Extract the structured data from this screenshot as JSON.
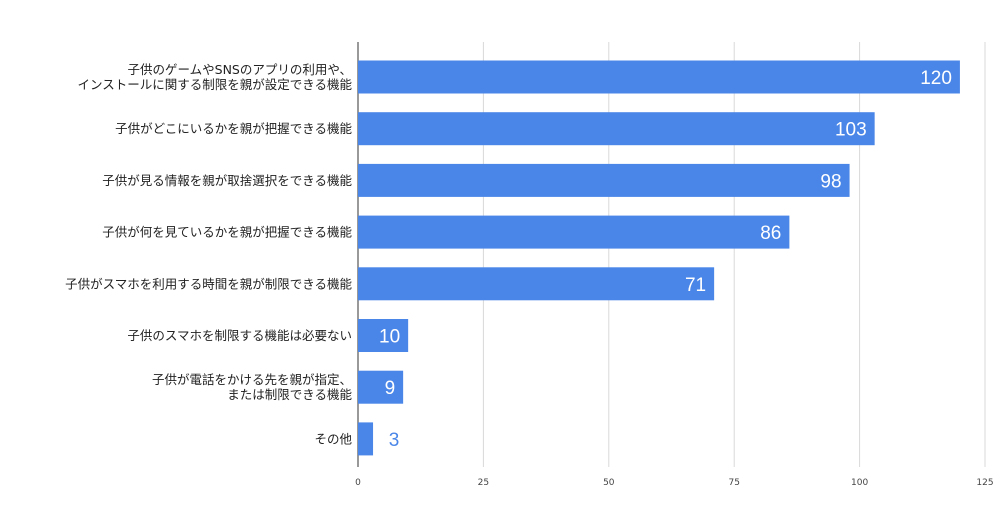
{
  "chart_data": {
    "type": "bar",
    "orientation": "horizontal",
    "categories": [
      [
        "子供のゲームやSNSのアプリの利用や、",
        "インストールに関する制限を親が設定できる機能"
      ],
      [
        "子供がどこにいるかを親が把握できる機能"
      ],
      [
        "子供が見る情報を親が取捨選択をできる機能"
      ],
      [
        "子供が何を見ているかを親が把握できる機能"
      ],
      [
        "子供がスマホを利用する時間を親が制限できる機能"
      ],
      [
        "子供のスマホを制限する機能は必要ない"
      ],
      [
        "子供が電話をかける先を親が指定、",
        "または制限できる機能"
      ],
      [
        "その他"
      ]
    ],
    "values": [
      120,
      103,
      98,
      86,
      71,
      10,
      9,
      3
    ],
    "xlim": [
      0,
      125
    ],
    "xticks": [
      0,
      25,
      50,
      75,
      100,
      125
    ],
    "grid": true,
    "bar_color": "#4a86e8",
    "label_color_inside": "#ffffff",
    "label_color_outside": "#4a86e8"
  }
}
